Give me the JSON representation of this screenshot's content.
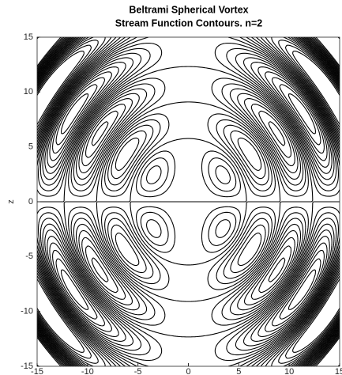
{
  "chart_data": {
    "type": "contour",
    "title": [
      "Beltrami Spherical Vortex",
      "Stream Function Contours. n=2"
    ],
    "ylabel": "z",
    "xlim": [
      -15,
      15
    ],
    "ylim": [
      -15,
      15
    ],
    "xticks": [
      -15,
      -10,
      -5,
      0,
      5,
      10,
      15
    ],
    "yticks": [
      -15,
      -10,
      -5,
      0,
      5,
      10,
      15
    ],
    "levels": [
      -5,
      -4.5,
      -4,
      -3.5,
      -3,
      -2.5,
      -2,
      -1.5,
      -1,
      -0.5,
      0,
      0.5,
      1,
      1.5,
      2,
      2.5,
      3,
      3.5,
      4,
      4.5,
      5
    ],
    "color": "#000000"
  }
}
